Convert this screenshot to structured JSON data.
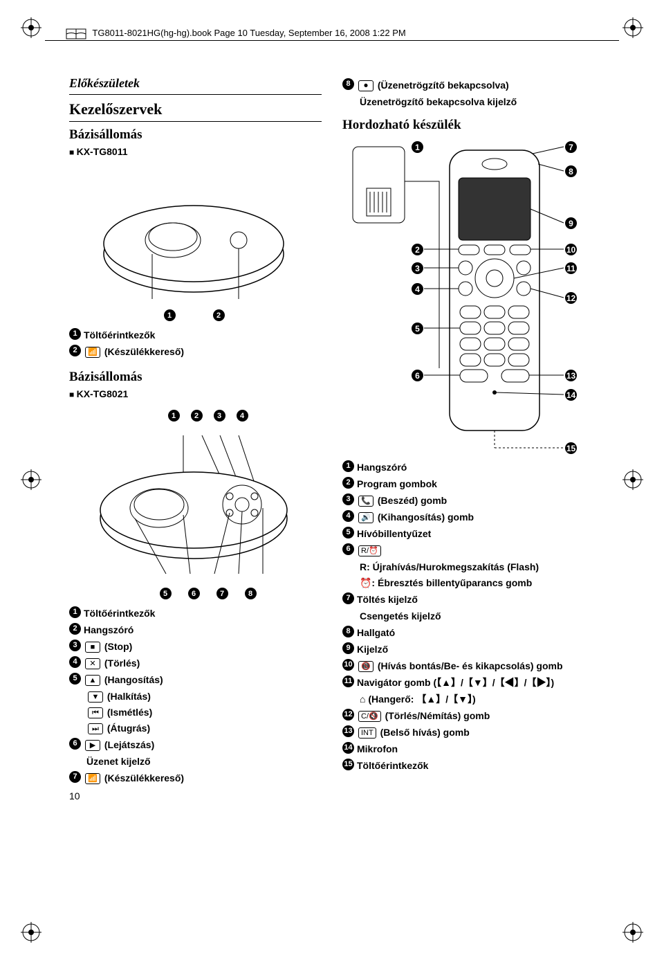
{
  "header": "TG8011-8021HG(hg-hg).book  Page 10  Tuesday, September 16, 2008  1:22 PM",
  "page_number": "10",
  "left": {
    "section_title": "Előkészületek",
    "main_title": "Kezelőszervek",
    "base1": {
      "title": "Bázisállomás",
      "model": "KX-TG8011"
    },
    "base1_items": [
      {
        "n": "1",
        "t": "Töltőérintkezők"
      },
      {
        "n": "2",
        "sym": "📶",
        "t": "(Készülékkereső)"
      }
    ],
    "base2": {
      "title": "Bázisállomás",
      "model": "KX-TG8021"
    },
    "base2_items": [
      {
        "n": "1",
        "t": "Töltőérintkezők"
      },
      {
        "n": "2",
        "t": "Hangszóró"
      },
      {
        "n": "3",
        "sym": "■",
        "t": "(Stop)"
      },
      {
        "n": "4",
        "sym": "✕",
        "t": "(Törlés)"
      },
      {
        "n": "5",
        "sym": "▲",
        "t": "(Hangosítás)"
      }
    ],
    "base2_subs": [
      {
        "sym": "▼",
        "t": "(Halkítás)"
      },
      {
        "sym": "⏮",
        "t": "(Ismétlés)"
      },
      {
        "sym": "⏭",
        "t": "(Átugrás)"
      }
    ],
    "base2_items2": [
      {
        "n": "6",
        "sym": "▶",
        "t": "(Lejátszás)",
        "sub": "Üzenet kijelző"
      },
      {
        "n": "7",
        "sym": "📶",
        "t": "(Készülékkereső)"
      }
    ]
  },
  "right": {
    "top_item": {
      "n": "8",
      "sym": "⏺",
      "t": "(Üzenetrögzítő bekapcsolva)",
      "sub": "Üzenetrögzítő bekapcsolva kijelző"
    },
    "handset_title": "Hordozható készülék",
    "callouts_left": [
      "1",
      "2",
      "3",
      "4",
      "5",
      "6"
    ],
    "callouts_right": [
      "7",
      "8",
      "9",
      "10",
      "11",
      "12",
      "13",
      "14",
      "15"
    ],
    "items": [
      {
        "n": "1",
        "t": "Hangszóró"
      },
      {
        "n": "2",
        "t": "Program gombok"
      },
      {
        "n": "3",
        "sym": "📞",
        "t": "(Beszéd) gomb"
      },
      {
        "n": "4",
        "sym": "🔊",
        "t": "(Kihangosítás) gomb"
      },
      {
        "n": "5",
        "t": "Hívóbillentyűzet"
      },
      {
        "n": "6",
        "sym": "R/⏰",
        "t": "",
        "sub1": "R: Újrahívás/Hurokmegszakítás (Flash)",
        "sub2": "⏰: Ébresztés billentyűparancs gomb"
      },
      {
        "n": "7",
        "t": "Töltés kijelző",
        "sub": "Csengetés kijelző"
      },
      {
        "n": "8",
        "t": "Hallgató"
      },
      {
        "n": "9",
        "t": "Kijelző"
      },
      {
        "n": "10",
        "sym": "📵",
        "t": "(Hívás bontás/Be- és kikapcsolás) gomb"
      },
      {
        "n": "11",
        "t": "Navigátor gomb (【▲】/【▼】/【◀】/【▶】)",
        "sub": "⌂ (Hangerő: 【▲】/【▼】)"
      },
      {
        "n": "12",
        "sym": "C/🔇",
        "t": "(Törlés/Némítás) gomb"
      },
      {
        "n": "13",
        "sym": "INT",
        "t": "(Belső hívás) gomb"
      },
      {
        "n": "14",
        "t": "Mikrofon"
      },
      {
        "n": "15",
        "t": "Töltőérintkezők"
      }
    ]
  }
}
